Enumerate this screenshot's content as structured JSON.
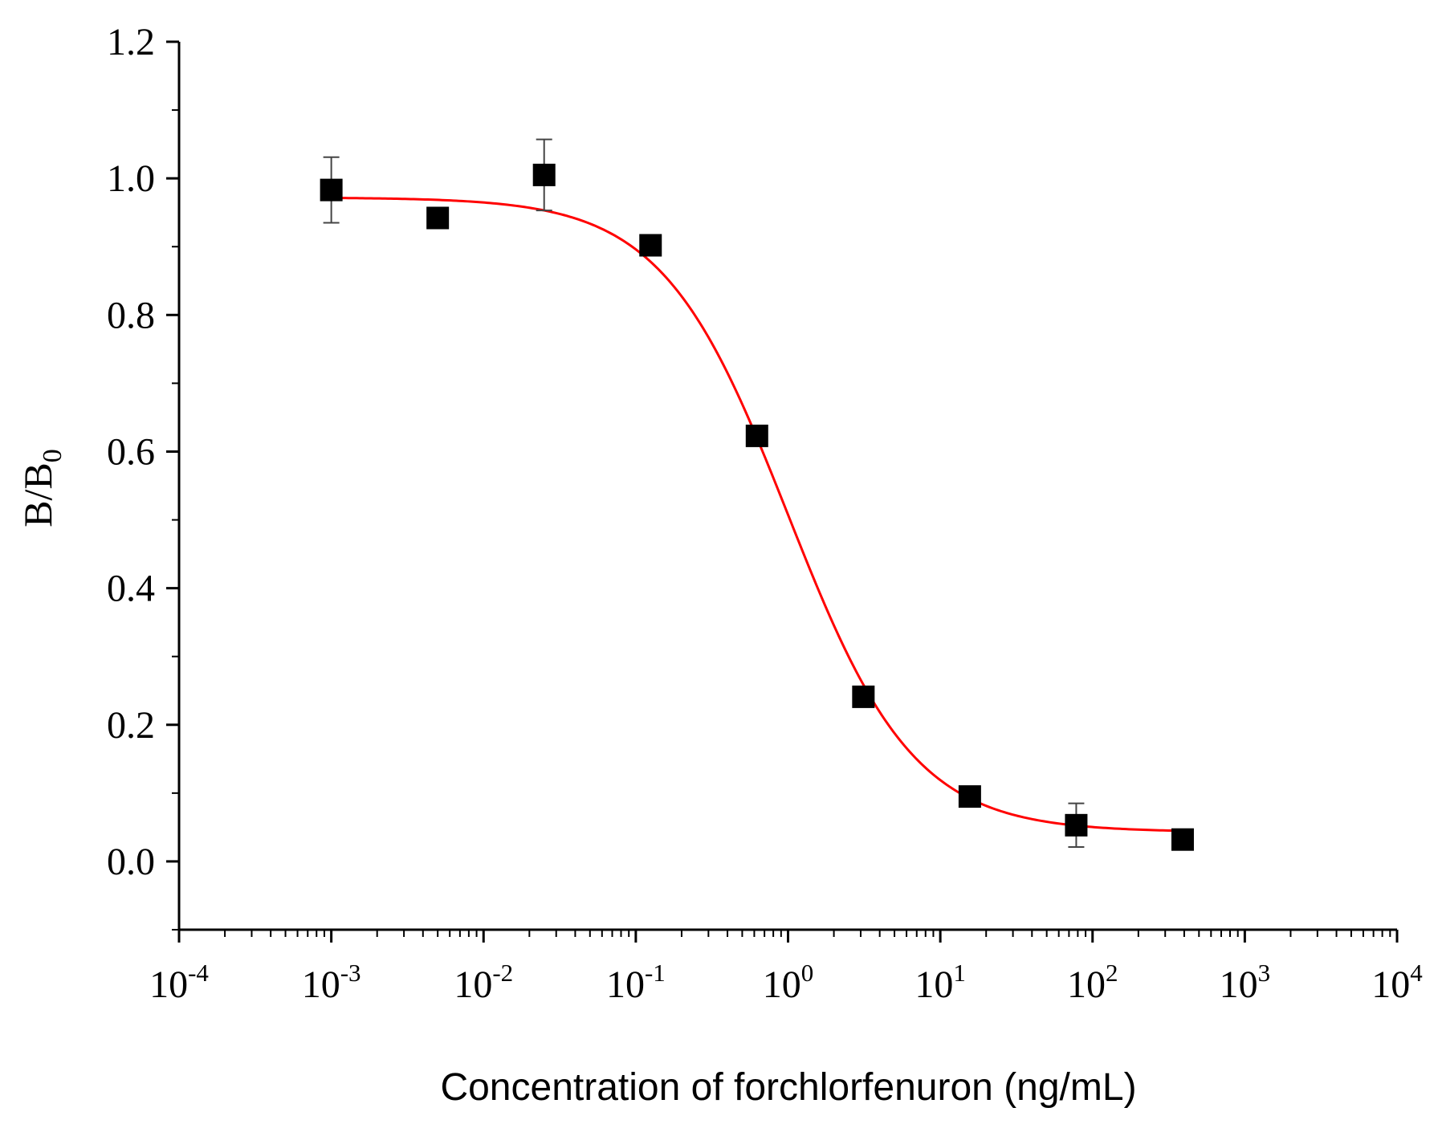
{
  "chart_data": {
    "type": "scatter",
    "xlabel": "Concentration of forchlorfenuron (ng/mL)",
    "ylabel": "B/B",
    "ylabel_sub": "0",
    "x_scale": "log",
    "xlim": [
      0.0001,
      10000
    ],
    "ylim": [
      -0.1,
      1.2
    ],
    "x_ticks": [
      {
        "value": 0.0001,
        "base": "10",
        "exp": "-4"
      },
      {
        "value": 0.001,
        "base": "10",
        "exp": "-3"
      },
      {
        "value": 0.01,
        "base": "10",
        "exp": "-2"
      },
      {
        "value": 0.1,
        "base": "10",
        "exp": "-1"
      },
      {
        "value": 1,
        "base": "10",
        "exp": "0"
      },
      {
        "value": 10,
        "base": "10",
        "exp": "1"
      },
      {
        "value": 100,
        "base": "10",
        "exp": "2"
      },
      {
        "value": 1000,
        "base": "10",
        "exp": "3"
      },
      {
        "value": 10000,
        "base": "10",
        "exp": "4"
      }
    ],
    "y_ticks": [
      {
        "value": 0.0,
        "label": "0.0"
      },
      {
        "value": 0.2,
        "label": "0.2"
      },
      {
        "value": 0.4,
        "label": "0.4"
      },
      {
        "value": 0.6,
        "label": "0.6"
      },
      {
        "value": 0.8,
        "label": "0.8"
      },
      {
        "value": 1.0,
        "label": "1.0"
      },
      {
        "value": 1.2,
        "label": "1.2"
      }
    ],
    "grid": false,
    "series": [
      {
        "marker": "square",
        "color": "#000000",
        "points": [
          {
            "x": 0.001,
            "y": 0.983,
            "err": 0.048
          },
          {
            "x": 0.005,
            "y": 0.942,
            "err": 0.01
          },
          {
            "x": 0.025,
            "y": 1.005,
            "err": 0.052
          },
          {
            "x": 0.125,
            "y": 0.902,
            "err": 0.008
          },
          {
            "x": 0.625,
            "y": 0.623,
            "err": 0.008
          },
          {
            "x": 3.125,
            "y": 0.241,
            "err": 0.008
          },
          {
            "x": 15.625,
            "y": 0.095,
            "err": 0.008
          },
          {
            "x": 78.125,
            "y": 0.053,
            "err": 0.032
          },
          {
            "x": 390.625,
            "y": 0.032,
            "err": 0.006
          }
        ]
      },
      {
        "type": "line",
        "color": "#ff0000",
        "fit": "four-parameter logistic",
        "x_range": [
          0.001,
          390.625
        ],
        "top": 0.972,
        "bottom": 0.043,
        "ic50": 1.0,
        "slope": 1.05
      }
    ]
  }
}
